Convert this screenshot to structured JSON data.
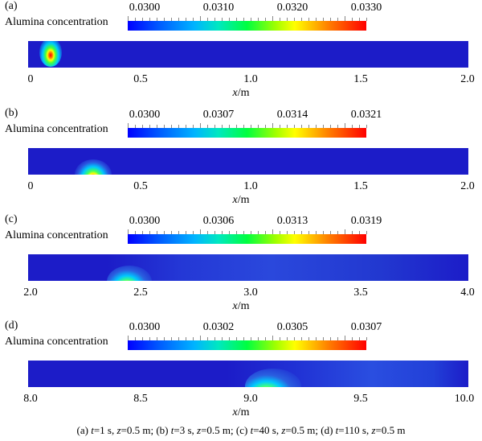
{
  "panels": [
    {
      "tag": "(a)",
      "colorbar_title": "Alumina concentration",
      "colorbar_ticks": [
        "0.0300",
        "0.0310",
        "0.0320",
        "0.0330"
      ],
      "axis_ticks": [
        "0",
        "0.5",
        "1.0",
        "1.5",
        "2.0"
      ],
      "axis_label": "x",
      "axis_unit": "/m",
      "hotspot_x": 0.1
    },
    {
      "tag": "(b)",
      "colorbar_title": "Alumina concentration",
      "colorbar_ticks": [
        "0.0300",
        "0.0307",
        "0.0314",
        "0.0321"
      ],
      "axis_ticks": [
        "0",
        "0.5",
        "1.0",
        "1.5",
        "2.0"
      ],
      "axis_label": "x",
      "axis_unit": "/m",
      "hotspot_x": 0.27
    },
    {
      "tag": "(c)",
      "colorbar_title": "Alumina concentration",
      "colorbar_ticks": [
        "0.0300",
        "0.0306",
        "0.0313",
        "0.0319"
      ],
      "axis_ticks": [
        "2.0",
        "2.5",
        "3.0",
        "3.5",
        "4.0"
      ],
      "axis_label": "x",
      "axis_unit": "/m",
      "hotspot_x": 2.43
    },
    {
      "tag": "(d)",
      "colorbar_title": "Alumina concentration",
      "colorbar_ticks": [
        "0.0300",
        "0.0302",
        "0.0305",
        "0.0307"
      ],
      "axis_ticks": [
        "8.0",
        "8.5",
        "9.0",
        "9.5",
        "10.0"
      ],
      "axis_label": "x",
      "axis_unit": "/m",
      "hotspot_x": 9.07
    }
  ],
  "caption": {
    "a": "(a)",
    "a_t": "t",
    "a_rest": "=1  s,  ",
    "a_z": "z",
    "a_zval": "=0.5  m;",
    "b": " (b) ",
    "b_t": "t",
    "b_rest": "=3 s, ",
    "b_z": "z",
    "b_zval": "=0.5 m;",
    "c": " (c) ",
    "c_t": "t",
    "c_rest": "=40 s, ",
    "c_z": "z",
    "c_zval": "=0.5 m;",
    "d": " (d) ",
    "d_t": "t",
    "d_rest": "=110 s, ",
    "d_z": "z",
    "d_zval": "=0.5 m"
  }
}
